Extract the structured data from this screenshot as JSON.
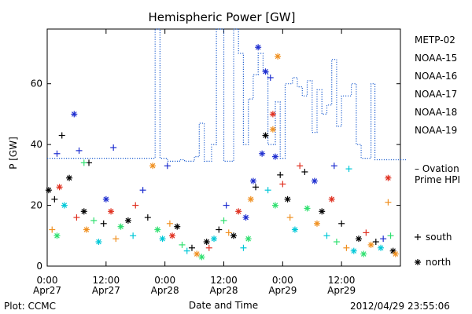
{
  "chart_data": {
    "type": "scatter",
    "title": "Hemispheric Power [GW]",
    "ylabel": "P [GW]",
    "xlabel": "Date and Time",
    "xlim": [
      "2012-04-27 00:00",
      "2012-04-30 00:00"
    ],
    "ylim": [
      0,
      78
    ],
    "x_ticks": [
      {
        "time": "2012-04-27 00:00",
        "line1": "0:00",
        "line2": "Apr27"
      },
      {
        "time": "2012-04-27 12:00",
        "line1": "12:00",
        "line2": "Apr27"
      },
      {
        "time": "2012-04-28 00:00",
        "line1": "0:00",
        "line2": "Apr28"
      },
      {
        "time": "2012-04-28 12:00",
        "line1": "12:00",
        "line2": "Apr28"
      },
      {
        "time": "2012-04-29 00:00",
        "line1": "0:00",
        "line2": "Apr29"
      },
      {
        "time": "2012-04-29 12:00",
        "line1": "12:00",
        "line2": "Apr29"
      }
    ],
    "y_ticks": [
      0,
      20,
      40,
      60
    ],
    "legend_position": "right",
    "series": [
      {
        "name": "METP-02",
        "color": "#000000"
      },
      {
        "name": "NOAA-15",
        "color": "#1f2fd0"
      },
      {
        "name": "NOAA-16",
        "color": "#00c8d8"
      },
      {
        "name": "NOAA-17",
        "color": "#30e070"
      },
      {
        "name": "NOAA-18",
        "color": "#f09020"
      },
      {
        "name": "NOAA-19",
        "color": "#e03020"
      }
    ],
    "ovation_line": {
      "label_line1": "– Ovation",
      "label_line2": "Prime HPI",
      "color": "#1f5fd0",
      "points": [
        [
          0,
          35.5
        ],
        [
          22.0,
          35.5
        ],
        [
          22.0,
          78
        ],
        [
          23.0,
          78
        ],
        [
          23.0,
          35.5
        ],
        [
          24.5,
          35.5
        ],
        [
          24.5,
          34.5
        ],
        [
          27.0,
          34.5
        ],
        [
          27.0,
          35.0
        ],
        [
          28.0,
          35.0
        ],
        [
          28.0,
          34.5
        ],
        [
          30.0,
          34.5
        ],
        [
          30.0,
          36.0
        ],
        [
          31.0,
          36.0
        ],
        [
          31.0,
          47.0
        ],
        [
          32.0,
          47.0
        ],
        [
          32.0,
          34.5
        ],
        [
          33.5,
          34.5
        ],
        [
          33.5,
          40.0
        ],
        [
          34.5,
          40.0
        ],
        [
          34.5,
          78
        ],
        [
          36.0,
          78
        ],
        [
          36.0,
          34.5
        ],
        [
          38.0,
          34.5
        ],
        [
          38.0,
          78
        ],
        [
          39.0,
          78
        ],
        [
          39.0,
          70.0
        ],
        [
          40.0,
          70.0
        ],
        [
          40.0,
          40.0
        ],
        [
          41.0,
          40.0
        ],
        [
          41.0,
          55.0
        ],
        [
          42.0,
          55.0
        ],
        [
          42.0,
          63.0
        ],
        [
          43.0,
          63.0
        ],
        [
          43.0,
          70.0
        ],
        [
          44.0,
          70.0
        ],
        [
          44.0,
          64.0
        ],
        [
          45.0,
          64.0
        ],
        [
          45.0,
          40.0
        ],
        [
          46.5,
          40.0
        ],
        [
          46.5,
          54.0
        ],
        [
          47.5,
          54.0
        ],
        [
          47.5,
          35.5
        ],
        [
          48.5,
          35.5
        ],
        [
          48.5,
          60.0
        ],
        [
          50.0,
          60.0
        ],
        [
          50.0,
          62.0
        ],
        [
          51.0,
          62.0
        ],
        [
          51.0,
          59.0
        ],
        [
          52.0,
          59.0
        ],
        [
          52.0,
          56.0
        ],
        [
          53.0,
          56.0
        ],
        [
          53.0,
          61.0
        ],
        [
          54.0,
          61.0
        ],
        [
          54.0,
          44.0
        ],
        [
          55.0,
          44.0
        ],
        [
          55.0,
          58.0
        ],
        [
          56.0,
          58.0
        ],
        [
          56.0,
          50.0
        ],
        [
          57.0,
          50.0
        ],
        [
          57.0,
          53.0
        ],
        [
          58.0,
          53.0
        ],
        [
          58.0,
          68.0
        ],
        [
          59.0,
          68.0
        ],
        [
          59.0,
          46.0
        ],
        [
          60.0,
          46.0
        ],
        [
          60.0,
          56.0
        ],
        [
          62.0,
          56.0
        ],
        [
          62.0,
          60.0
        ],
        [
          63.0,
          60.0
        ],
        [
          63.0,
          40.0
        ],
        [
          64.0,
          40.0
        ],
        [
          64.0,
          35.5
        ],
        [
          66.0,
          35.5
        ],
        [
          66.0,
          60.0
        ],
        [
          66.8,
          60.0
        ],
        [
          66.8,
          35.0
        ],
        [
          72.0,
          35.0
        ]
      ]
    },
    "marker_key": [
      {
        "symbol": "+",
        "label": "south"
      },
      {
        "symbol": "*",
        "label": "north"
      }
    ],
    "points": [
      {
        "s": 0,
        "m": "*",
        "x": 0.3,
        "y": 25
      },
      {
        "s": 0,
        "m": "+",
        "x": 1.5,
        "y": 22
      },
      {
        "s": 1,
        "m": "+",
        "x": 2.0,
        "y": 37
      },
      {
        "s": 0,
        "m": "+",
        "x": 3.0,
        "y": 43
      },
      {
        "s": 1,
        "m": "*",
        "x": 5.5,
        "y": 50
      },
      {
        "s": 1,
        "m": "+",
        "x": 6.5,
        "y": 38
      },
      {
        "s": 0,
        "m": "+",
        "x": 8.5,
        "y": 34
      },
      {
        "s": 3,
        "m": "+",
        "x": 7.5,
        "y": 34
      },
      {
        "s": 1,
        "m": "+",
        "x": 13.5,
        "y": 39
      },
      {
        "s": 5,
        "m": "*",
        "x": 2.5,
        "y": 26
      },
      {
        "s": 0,
        "m": "*",
        "x": 4.5,
        "y": 29
      },
      {
        "s": 2,
        "m": "*",
        "x": 3.5,
        "y": 20
      },
      {
        "s": 4,
        "m": "+",
        "x": 1.0,
        "y": 12
      },
      {
        "s": 3,
        "m": "*",
        "x": 2.0,
        "y": 10
      },
      {
        "s": 5,
        "m": "+",
        "x": 6.0,
        "y": 16
      },
      {
        "s": 0,
        "m": "*",
        "x": 7.5,
        "y": 18
      },
      {
        "s": 4,
        "m": "*",
        "x": 8.0,
        "y": 12
      },
      {
        "s": 3,
        "m": "+",
        "x": 9.5,
        "y": 15
      },
      {
        "s": 2,
        "m": "*",
        "x": 10.5,
        "y": 8
      },
      {
        "s": 0,
        "m": "+",
        "x": 11.5,
        "y": 14
      },
      {
        "s": 1,
        "m": "*",
        "x": 12.0,
        "y": 22
      },
      {
        "s": 5,
        "m": "*",
        "x": 13.0,
        "y": 18
      },
      {
        "s": 4,
        "m": "+",
        "x": 14.0,
        "y": 9
      },
      {
        "s": 3,
        "m": "*",
        "x": 15.0,
        "y": 13
      },
      {
        "s": 0,
        "m": "*",
        "x": 16.5,
        "y": 15
      },
      {
        "s": 2,
        "m": "+",
        "x": 17.5,
        "y": 10
      },
      {
        "s": 5,
        "m": "+",
        "x": 18.0,
        "y": 20
      },
      {
        "s": 1,
        "m": "+",
        "x": 19.5,
        "y": 25
      },
      {
        "s": 4,
        "m": "*",
        "x": 21.5,
        "y": 33
      },
      {
        "s": 1,
        "m": "+",
        "x": 24.5,
        "y": 33
      },
      {
        "s": 0,
        "m": "+",
        "x": 20.5,
        "y": 16
      },
      {
        "s": 3,
        "m": "*",
        "x": 22.5,
        "y": 12
      },
      {
        "s": 2,
        "m": "*",
        "x": 23.5,
        "y": 9
      },
      {
        "s": 4,
        "m": "+",
        "x": 25.0,
        "y": 14
      },
      {
        "s": 5,
        "m": "*",
        "x": 25.5,
        "y": 10
      },
      {
        "s": 0,
        "m": "*",
        "x": 26.5,
        "y": 13
      },
      {
        "s": 3,
        "m": "+",
        "x": 27.5,
        "y": 7
      },
      {
        "s": 2,
        "m": "+",
        "x": 28.5,
        "y": 5
      },
      {
        "s": 0,
        "m": "+",
        "x": 29.5,
        "y": 6
      },
      {
        "s": 4,
        "m": "*",
        "x": 30.5,
        "y": 4
      },
      {
        "s": 3,
        "m": "*",
        "x": 31.5,
        "y": 3
      },
      {
        "s": 0,
        "m": "*",
        "x": 32.5,
        "y": 8
      },
      {
        "s": 5,
        "m": "+",
        "x": 33.0,
        "y": 6
      },
      {
        "s": 2,
        "m": "*",
        "x": 34.0,
        "y": 9
      },
      {
        "s": 0,
        "m": "+",
        "x": 35.0,
        "y": 12
      },
      {
        "s": 3,
        "m": "+",
        "x": 36.0,
        "y": 15
      },
      {
        "s": 1,
        "m": "+",
        "x": 36.5,
        "y": 20
      },
      {
        "s": 4,
        "m": "+",
        "x": 37.0,
        "y": 11
      },
      {
        "s": 0,
        "m": "*",
        "x": 38.0,
        "y": 10
      },
      {
        "s": 5,
        "m": "*",
        "x": 39.0,
        "y": 18
      },
      {
        "s": 2,
        "m": "+",
        "x": 40.0,
        "y": 6
      },
      {
        "s": 1,
        "m": "*",
        "x": 40.5,
        "y": 16
      },
      {
        "s": 3,
        "m": "*",
        "x": 41.0,
        "y": 9
      },
      {
        "s": 4,
        "m": "*",
        "x": 41.5,
        "y": 22
      },
      {
        "s": 1,
        "m": "*",
        "x": 42.0,
        "y": 28
      },
      {
        "s": 0,
        "m": "+",
        "x": 42.5,
        "y": 26
      },
      {
        "s": 1,
        "m": "*",
        "x": 43.0,
        "y": 72
      },
      {
        "s": 1,
        "m": "*",
        "x": 44.5,
        "y": 64
      },
      {
        "s": 1,
        "m": "*",
        "x": 43.8,
        "y": 37
      },
      {
        "s": 0,
        "m": "*",
        "x": 44.5,
        "y": 43
      },
      {
        "s": 1,
        "m": "+",
        "x": 45.5,
        "y": 62
      },
      {
        "s": 5,
        "m": "*",
        "x": 46.0,
        "y": 50
      },
      {
        "s": 4,
        "m": "*",
        "x": 46.0,
        "y": 45
      },
      {
        "s": 4,
        "m": "*",
        "x": 47.0,
        "y": 69
      },
      {
        "s": 1,
        "m": "*",
        "x": 46.5,
        "y": 36
      },
      {
        "s": 0,
        "m": "+",
        "x": 47.5,
        "y": 30
      },
      {
        "s": 2,
        "m": "+",
        "x": 45.0,
        "y": 25
      },
      {
        "s": 3,
        "m": "*",
        "x": 46.5,
        "y": 20
      },
      {
        "s": 5,
        "m": "+",
        "x": 48.0,
        "y": 27
      },
      {
        "s": 0,
        "m": "*",
        "x": 49.0,
        "y": 22
      },
      {
        "s": 4,
        "m": "+",
        "x": 49.5,
        "y": 16
      },
      {
        "s": 2,
        "m": "*",
        "x": 50.5,
        "y": 12
      },
      {
        "s": 5,
        "m": "+",
        "x": 51.5,
        "y": 33
      },
      {
        "s": 0,
        "m": "+",
        "x": 52.5,
        "y": 31
      },
      {
        "s": 3,
        "m": "*",
        "x": 53.0,
        "y": 19
      },
      {
        "s": 1,
        "m": "*",
        "x": 54.5,
        "y": 28
      },
      {
        "s": 4,
        "m": "*",
        "x": 55.0,
        "y": 14
      },
      {
        "s": 0,
        "m": "*",
        "x": 56.0,
        "y": 18
      },
      {
        "s": 2,
        "m": "+",
        "x": 57.0,
        "y": 10
      },
      {
        "s": 1,
        "m": "+",
        "x": 58.5,
        "y": 33
      },
      {
        "s": 5,
        "m": "*",
        "x": 58.0,
        "y": 22
      },
      {
        "s": 3,
        "m": "+",
        "x": 59.0,
        "y": 8
      },
      {
        "s": 0,
        "m": "+",
        "x": 60.0,
        "y": 14
      },
      {
        "s": 4,
        "m": "+",
        "x": 61.0,
        "y": 6
      },
      {
        "s": 2,
        "m": "+",
        "x": 61.5,
        "y": 32
      },
      {
        "s": 2,
        "m": "*",
        "x": 62.5,
        "y": 5
      },
      {
        "s": 0,
        "m": "*",
        "x": 63.5,
        "y": 9
      },
      {
        "s": 3,
        "m": "*",
        "x": 64.5,
        "y": 4
      },
      {
        "s": 5,
        "m": "+",
        "x": 65.0,
        "y": 11
      },
      {
        "s": 4,
        "m": "*",
        "x": 66.0,
        "y": 7
      },
      {
        "s": 0,
        "m": "+",
        "x": 67.0,
        "y": 8
      },
      {
        "s": 2,
        "m": "*",
        "x": 68.0,
        "y": 6
      },
      {
        "s": 1,
        "m": "+",
        "x": 68.5,
        "y": 9
      },
      {
        "s": 5,
        "m": "*",
        "x": 69.5,
        "y": 29
      },
      {
        "s": 4,
        "m": "+",
        "x": 69.5,
        "y": 21
      },
      {
        "s": 3,
        "m": "+",
        "x": 70.0,
        "y": 10
      },
      {
        "s": 0,
        "m": "*",
        "x": 70.5,
        "y": 5
      },
      {
        "s": 4,
        "m": "*",
        "x": 71.0,
        "y": 4
      }
    ]
  },
  "footer": {
    "left": "Plot: CCMC",
    "right": "2012/04/29 23:55:06"
  }
}
